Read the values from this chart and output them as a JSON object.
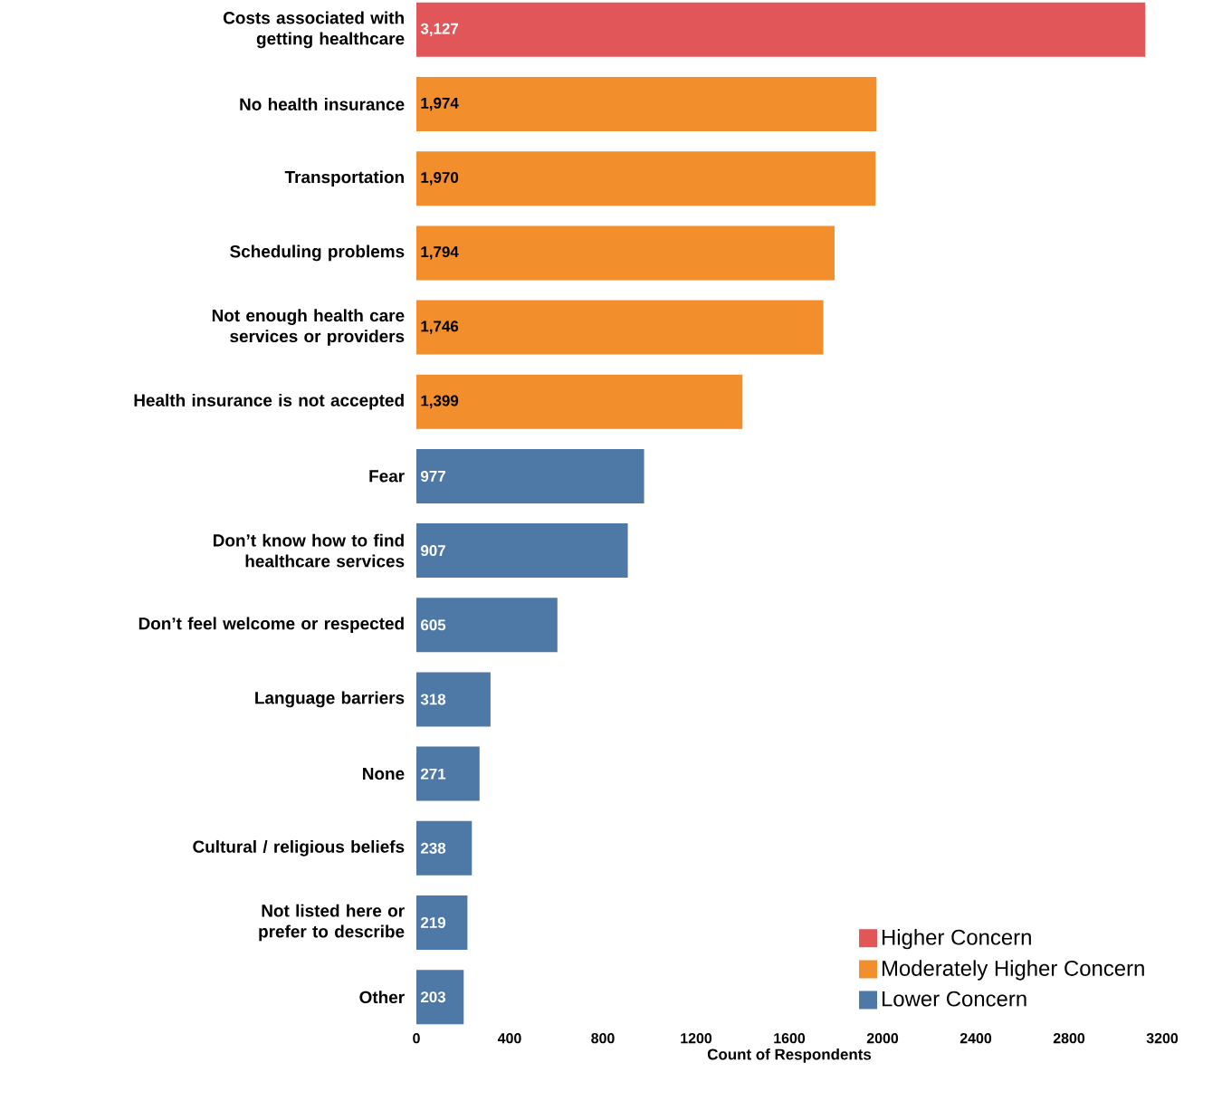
{
  "chart_data": {
    "type": "bar",
    "orientation": "horizontal",
    "xlabel": "Count of Respondents",
    "categories": [
      "Costs associated with getting healthcare",
      "No health insurance",
      "Transportation",
      "Scheduling problems",
      "Not enough health care services or providers",
      "Health insurance is not accepted",
      "Fear",
      "Don’t know how to find healthcare services",
      "Don’t feel welcome or respected",
      "Language barriers",
      "None",
      "Cultural / religious beliefs",
      "Not listed here or prefer to describe",
      "Other"
    ],
    "series": [
      {
        "name": "Higher Concern",
        "color": "#e15759",
        "values": [
          3127,
          null,
          null,
          null,
          null,
          null,
          null,
          null,
          null,
          null,
          null,
          null,
          null,
          null
        ],
        "value_labels": [
          "3,127",
          null,
          null,
          null,
          null,
          null,
          null,
          null,
          null,
          null,
          null,
          null,
          null,
          null
        ]
      },
      {
        "name": "Moderately Higher Concern",
        "color": "#f28e2b",
        "values": [
          null,
          1974,
          1970,
          1794,
          1746,
          1399,
          null,
          null,
          null,
          null,
          null,
          null,
          null,
          null
        ],
        "value_labels": [
          null,
          "1,974",
          "1,970",
          "1,794",
          "1,746",
          "1,399",
          null,
          null,
          null,
          null,
          null,
          null,
          null,
          null
        ]
      },
      {
        "name": "Lower Concern",
        "color": "#4e79a7",
        "values": [
          null,
          null,
          null,
          null,
          null,
          null,
          977,
          907,
          605,
          318,
          271,
          238,
          219,
          203
        ],
        "value_labels": [
          null,
          null,
          null,
          null,
          null,
          null,
          "977",
          "907",
          "605",
          "318",
          "271",
          "238",
          "219",
          "203"
        ]
      }
    ],
    "xlim": [
      0,
      3200
    ],
    "xticks": [
      0,
      400,
      800,
      1200,
      1600,
      2000,
      2400,
      2800,
      3200
    ],
    "grid": false,
    "legend": "bottom right"
  }
}
